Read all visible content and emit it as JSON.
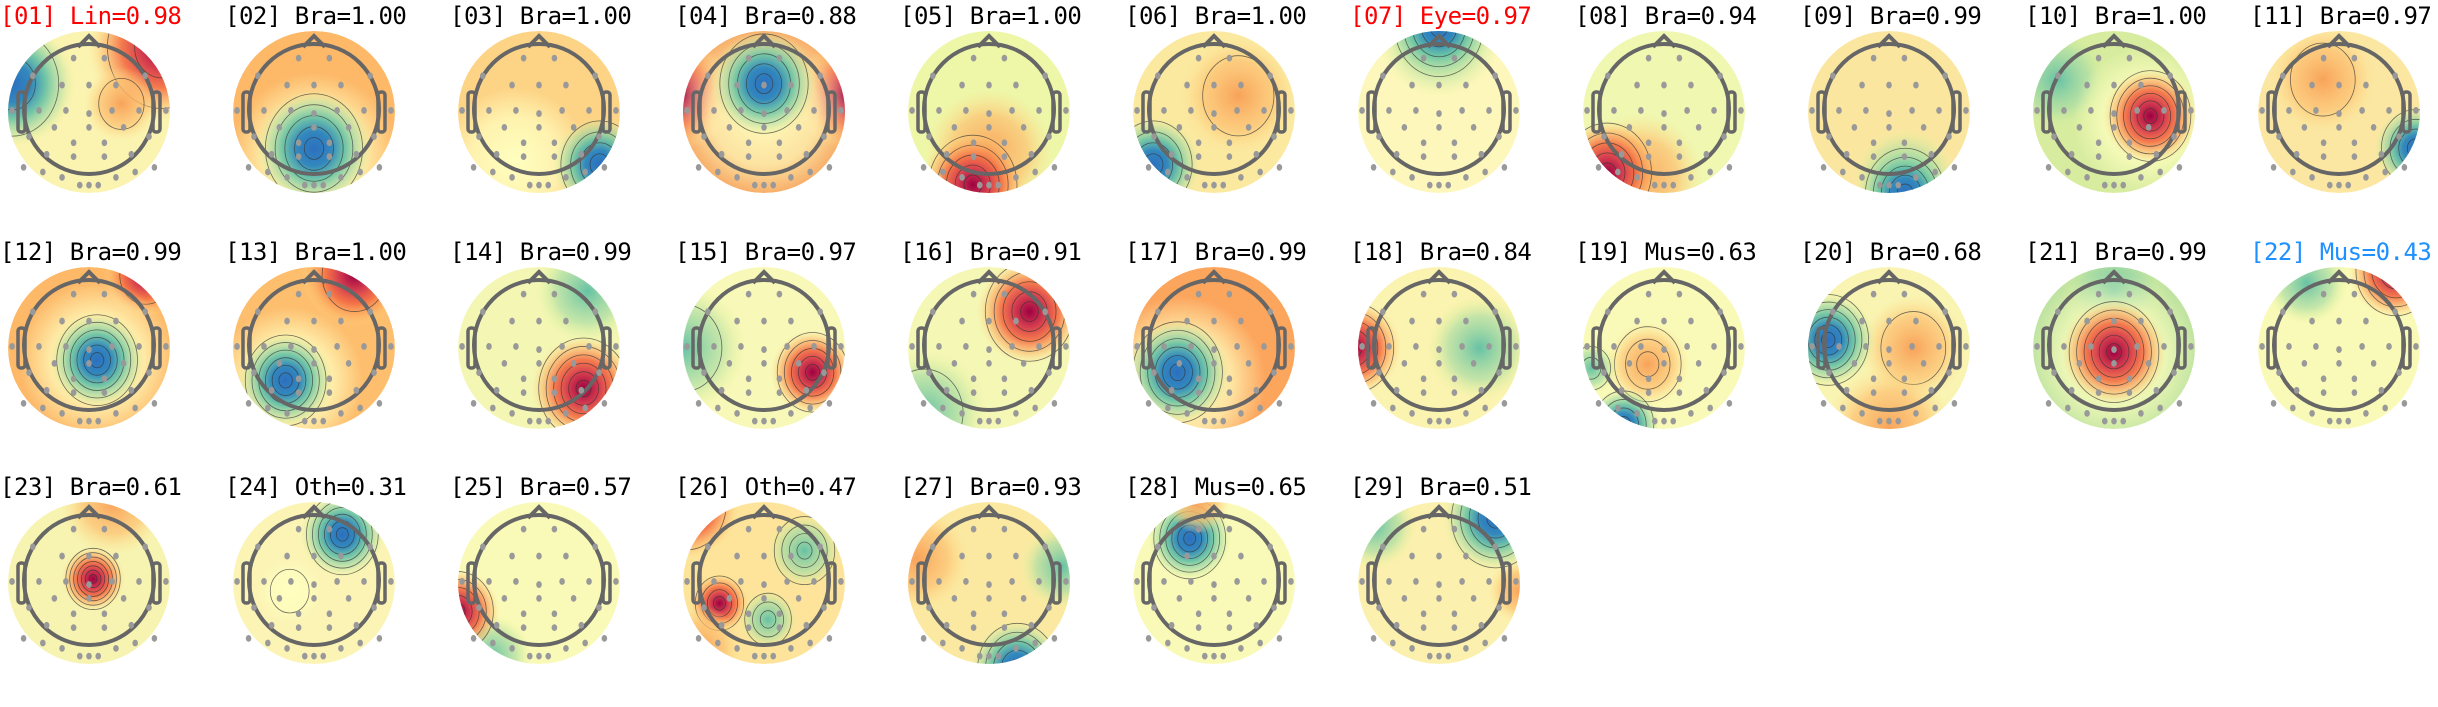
{
  "components": [
    {
      "id": "[01]",
      "label": "Lin",
      "score": "0.98",
      "title_color": "#ff0000"
    },
    {
      "id": "[02]",
      "label": "Bra",
      "score": "1.00",
      "title_color": "#000000"
    },
    {
      "id": "[03]",
      "label": "Bra",
      "score": "1.00",
      "title_color": "#000000"
    },
    {
      "id": "[04]",
      "label": "Bra",
      "score": "0.88",
      "title_color": "#000000"
    },
    {
      "id": "[05]",
      "label": "Bra",
      "score": "1.00",
      "title_color": "#000000"
    },
    {
      "id": "[06]",
      "label": "Bra",
      "score": "1.00",
      "title_color": "#000000"
    },
    {
      "id": "[07]",
      "label": "Eye",
      "score": "0.97",
      "title_color": "#ff0000"
    },
    {
      "id": "[08]",
      "label": "Bra",
      "score": "0.94",
      "title_color": "#000000"
    },
    {
      "id": "[09]",
      "label": "Bra",
      "score": "0.99",
      "title_color": "#000000"
    },
    {
      "id": "[10]",
      "label": "Bra",
      "score": "1.00",
      "title_color": "#000000"
    },
    {
      "id": "[11]",
      "label": "Bra",
      "score": "0.97",
      "title_color": "#000000"
    },
    {
      "id": "[12]",
      "label": "Bra",
      "score": "0.99",
      "title_color": "#000000"
    },
    {
      "id": "[13]",
      "label": "Bra",
      "score": "1.00",
      "title_color": "#000000"
    },
    {
      "id": "[14]",
      "label": "Bra",
      "score": "0.99",
      "title_color": "#000000"
    },
    {
      "id": "[15]",
      "label": "Bra",
      "score": "0.97",
      "title_color": "#000000"
    },
    {
      "id": "[16]",
      "label": "Bra",
      "score": "0.91",
      "title_color": "#000000"
    },
    {
      "id": "[17]",
      "label": "Bra",
      "score": "0.99",
      "title_color": "#000000"
    },
    {
      "id": "[18]",
      "label": "Bra",
      "score": "0.84",
      "title_color": "#000000"
    },
    {
      "id": "[19]",
      "label": "Mus",
      "score": "0.63",
      "title_color": "#000000"
    },
    {
      "id": "[20]",
      "label": "Bra",
      "score": "0.68",
      "title_color": "#000000"
    },
    {
      "id": "[21]",
      "label": "Bra",
      "score": "0.99",
      "title_color": "#000000"
    },
    {
      "id": "[22]",
      "label": "Mus",
      "score": "0.43",
      "title_color": "#1e90ff"
    },
    {
      "id": "[23]",
      "label": "Bra",
      "score": "0.61",
      "title_color": "#000000"
    },
    {
      "id": "[24]",
      "label": "Oth",
      "score": "0.31",
      "title_color": "#000000"
    },
    {
      "id": "[25]",
      "label": "Bra",
      "score": "0.57",
      "title_color": "#000000"
    },
    {
      "id": "[26]",
      "label": "Oth",
      "score": "0.47",
      "title_color": "#000000"
    },
    {
      "id": "[27]",
      "label": "Bra",
      "score": "0.93",
      "title_color": "#000000"
    },
    {
      "id": "[28]",
      "label": "Mus",
      "score": "0.65",
      "title_color": "#000000"
    },
    {
      "id": "[29]",
      "label": "Bra",
      "score": "0.51",
      "title_color": "#000000"
    }
  ],
  "colormap": [
    "#9e0142",
    "#d53e4f",
    "#f46d43",
    "#fdae61",
    "#fee08b",
    "#ffffbf",
    "#e6f598",
    "#abdda4",
    "#66c2a5",
    "#3288bd"
  ],
  "head_outline_color": "#666666",
  "electrode_color": "#999999"
}
